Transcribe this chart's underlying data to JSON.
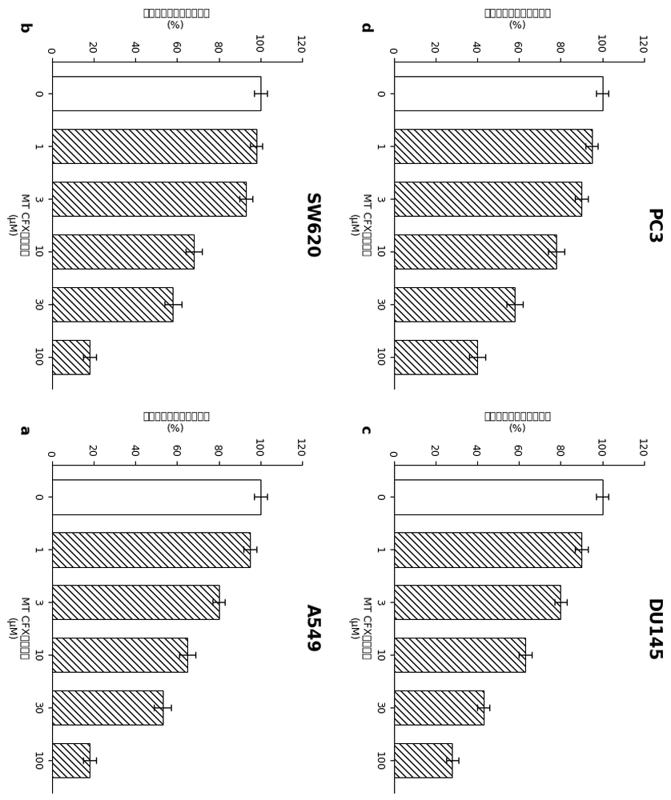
{
  "panels": [
    {
      "label": "b",
      "title": "SW620",
      "categories": [
        "0",
        "1",
        "3",
        "10",
        "30",
        "100"
      ],
      "values": [
        100,
        98,
        93,
        68,
        58,
        18
      ],
      "errors": [
        3,
        3,
        3,
        4,
        4,
        3
      ],
      "hatch_flags": [
        false,
        true,
        true,
        true,
        true,
        true
      ]
    },
    {
      "label": "d",
      "title": "PC3",
      "categories": [
        "0",
        "1",
        "3",
        "10",
        "30",
        "100"
      ],
      "values": [
        100,
        95,
        90,
        78,
        58,
        40
      ],
      "errors": [
        3,
        3,
        3,
        4,
        4,
        4
      ],
      "hatch_flags": [
        false,
        true,
        true,
        true,
        true,
        true
      ]
    },
    {
      "label": "a",
      "title": "A549",
      "categories": [
        "0",
        "1",
        "3",
        "10",
        "30",
        "100"
      ],
      "values": [
        100,
        95,
        80,
        65,
        53,
        18
      ],
      "errors": [
        3,
        3,
        3,
        4,
        4,
        3
      ],
      "hatch_flags": [
        false,
        true,
        true,
        true,
        true,
        true
      ]
    },
    {
      "label": "c",
      "title": "DU145",
      "categories": [
        "0",
        "1",
        "3",
        "10",
        "30",
        "100"
      ],
      "values": [
        100,
        90,
        80,
        63,
        43,
        28
      ],
      "errors": [
        3,
        3,
        3,
        3,
        3,
        3
      ],
      "hatch_flags": [
        false,
        true,
        true,
        true,
        true,
        true
      ]
    }
  ],
  "xlabel_cn": "MT CFX探针浓度",
  "xlabel_unit": "(μM)",
  "ylabel_cn": "（相对单位）细胞生存率",
  "ylim": [
    0,
    120
  ],
  "yticks": [
    0,
    20,
    40,
    60,
    80,
    100,
    120
  ],
  "bar_color_no_hatch": "#ffffff",
  "bar_color_hatch": "#ffffff",
  "hatch_pattern": "////",
  "edge_color": "#000000",
  "title_fontsize": 15,
  "label_fontsize": 9,
  "tick_fontsize": 9,
  "panel_label_fontsize": 13
}
